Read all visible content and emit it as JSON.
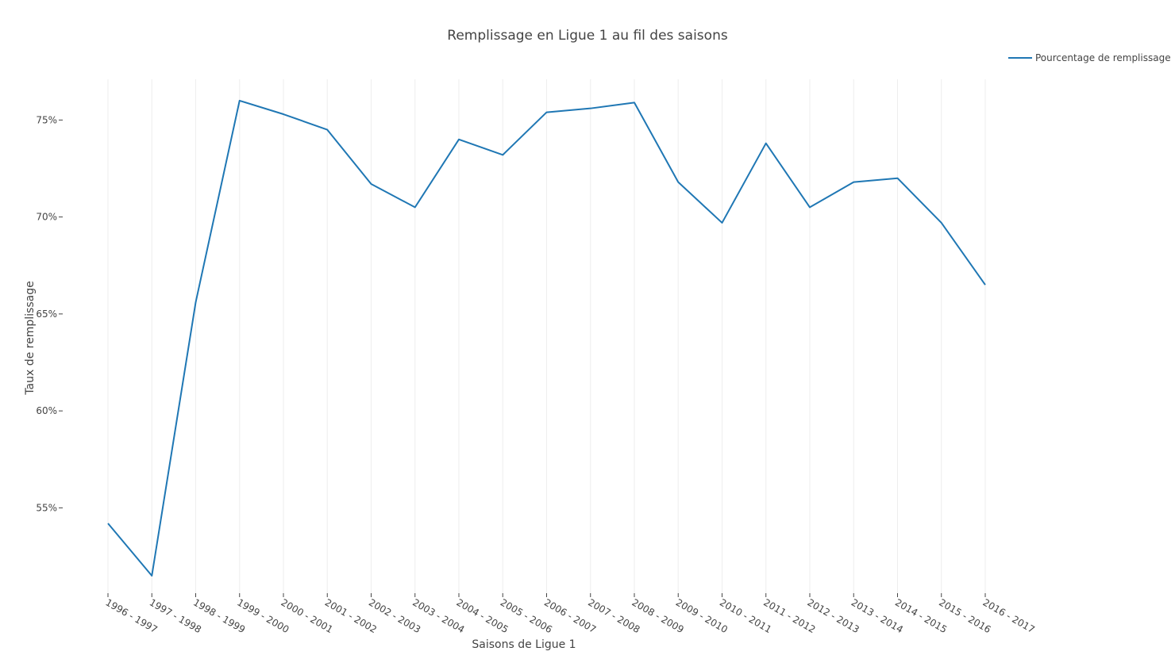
{
  "chart_data": {
    "type": "line",
    "title": "Remplissage en Ligue 1 au fil des saisons",
    "xlabel": "Saisons de Ligue 1",
    "ylabel": "Taux de remplissage",
    "categories": [
      "1996 - 1997",
      "1997 - 1998",
      "1998 - 1999",
      "1999 - 2000",
      "2000 - 2001",
      "2001 - 2002",
      "2002 - 2003",
      "2003 - 2004",
      "2004 - 2005",
      "2005 - 2006",
      "2006 - 2007",
      "2007 - 2008",
      "2008 - 2009",
      "2009 - 2010",
      "2010 - 2011",
      "2011 - 2012",
      "2012 - 2013",
      "2013 - 2014",
      "2014 - 2015",
      "2015 - 2016",
      "2016 - 2017"
    ],
    "series": [
      {
        "name": "Pourcentage de remplissage",
        "color": "#1f77b4",
        "values": [
          54.2,
          51.5,
          65.6,
          76.0,
          75.3,
          74.5,
          71.7,
          70.5,
          74.0,
          73.2,
          75.4,
          75.6,
          75.9,
          71.8,
          69.7,
          73.8,
          70.5,
          71.8,
          72.0,
          69.7,
          66.5
        ]
      }
    ],
    "yticks": [
      {
        "value": 55,
        "label": "55%"
      },
      {
        "value": 60,
        "label": "60%"
      },
      {
        "value": 65,
        "label": "65%"
      },
      {
        "value": 70,
        "label": "70%"
      },
      {
        "value": 75,
        "label": "75%"
      }
    ],
    "ylim": [
      50.6,
      77.1
    ],
    "grid": "vertical",
    "legend": "top-right"
  }
}
